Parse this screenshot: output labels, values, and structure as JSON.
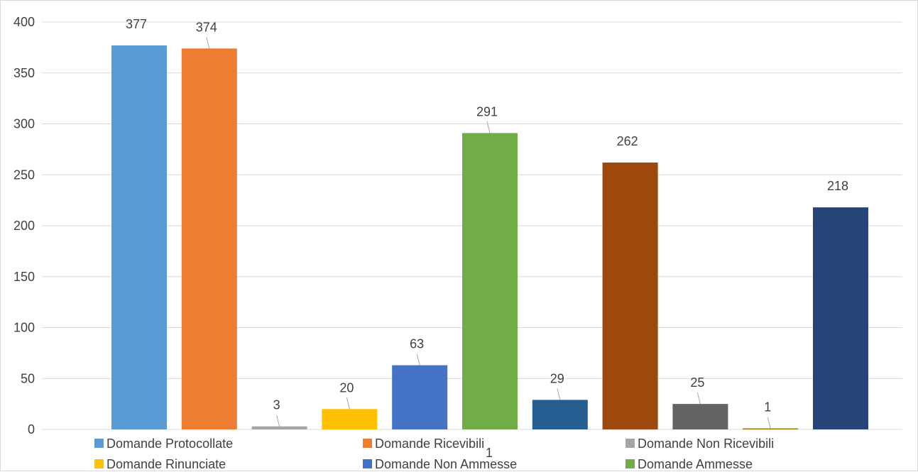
{
  "chart_data": {
    "type": "bar",
    "categories": [
      ""
    ],
    "ylim": [
      0,
      400
    ],
    "yticks": [
      0,
      50,
      100,
      150,
      200,
      250,
      300,
      350,
      400
    ],
    "grid": true,
    "legend_position": "bottom",
    "series": [
      {
        "name": "Domande Protocollate",
        "value": 377,
        "color": "#5b9bd5"
      },
      {
        "name": "Domande Ricevibili",
        "value": 374,
        "color": "#ed7d31"
      },
      {
        "name": "Domande Non Ricevibili",
        "value": 3,
        "color": "#a5a5a5"
      },
      {
        "name": "Domande Rinunciate",
        "value": 20,
        "color": "#ffc000"
      },
      {
        "name": "Domande Non Ammesse",
        "value": 63,
        "color": "#4472c4"
      },
      {
        "name": "Domande Ammesse",
        "value": 291,
        "color": "#70ad47"
      },
      {
        "name": "",
        "value": 29,
        "color": "#255e91"
      },
      {
        "name": "",
        "value": 262,
        "color": "#9e480e"
      },
      {
        "name": "",
        "value": 25,
        "color": "#636363"
      },
      {
        "name": "",
        "value": 1,
        "color": "#997300"
      },
      {
        "name": "",
        "value": 218,
        "color": "#264478"
      }
    ],
    "category_label": "1"
  }
}
